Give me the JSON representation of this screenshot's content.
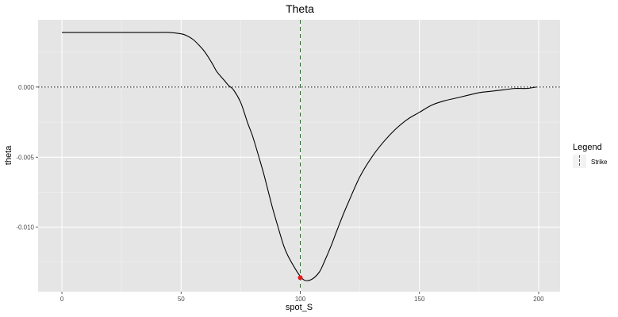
{
  "chart_data": {
    "type": "line",
    "title": "Theta",
    "xlabel": "spot_S",
    "ylabel": "theta",
    "xlim": [
      -10,
      209
    ],
    "ylim": [
      -0.0146,
      0.0048
    ],
    "x_ticks": [
      0,
      50,
      100,
      150,
      200
    ],
    "x_tick_labels": [
      "0",
      "50",
      "100",
      "150",
      "200"
    ],
    "y_ticks": [
      0.0,
      -0.005,
      -0.01
    ],
    "y_tick_labels": [
      "0.000",
      "-0.005",
      "-0.010"
    ],
    "grid": true,
    "legend": {
      "title": "Legend",
      "position": "right",
      "entries": [
        {
          "label": "Strike",
          "style": "dashed",
          "color": "#2d6a2d"
        }
      ]
    },
    "series": [
      {
        "style": "solid",
        "color": "#000000",
        "x": [
          0,
          10,
          20,
          30,
          40,
          45,
          50,
          52,
          55,
          58,
          60,
          63,
          65,
          68,
          70,
          72,
          75,
          78,
          80,
          83,
          85,
          88,
          90,
          93,
          95,
          98,
          100,
          102,
          105,
          108,
          110,
          113,
          115,
          118,
          120,
          125,
          130,
          135,
          140,
          145,
          150,
          155,
          160,
          165,
          170,
          175,
          180,
          185,
          190,
          195,
          199
        ],
        "y": [
          0.0039,
          0.0039,
          0.0039,
          0.0039,
          0.0039,
          0.0039,
          0.0038,
          0.0037,
          0.0034,
          0.0029,
          0.0025,
          0.0017,
          0.0011,
          0.0005,
          0.0001,
          -0.0002,
          -0.0011,
          -0.0026,
          -0.0035,
          -0.0052,
          -0.0064,
          -0.0084,
          -0.0096,
          -0.0113,
          -0.0121,
          -0.013,
          -0.0135,
          -0.0138,
          -0.0137,
          -0.0132,
          -0.0125,
          -0.0113,
          -0.0104,
          -0.0091,
          -0.0083,
          -0.0064,
          -0.005,
          -0.0039,
          -0.003,
          -0.0023,
          -0.0018,
          -0.0013,
          -0.001,
          -0.0008,
          -0.0006,
          -0.0004,
          -0.0003,
          -0.0002,
          -0.0001,
          -0.0001,
          0.0
        ]
      }
    ],
    "reference_lines": [
      {
        "orientation": "horizontal",
        "value": 0.0,
        "style": "dotted",
        "color": "#000000"
      },
      {
        "orientation": "vertical",
        "value": 100,
        "style": "dashed",
        "color": "#2d6a2d",
        "legend_label": "Strike"
      }
    ],
    "points": [
      {
        "x": 100,
        "y": -0.0136,
        "color": "#e41a1c"
      }
    ]
  }
}
